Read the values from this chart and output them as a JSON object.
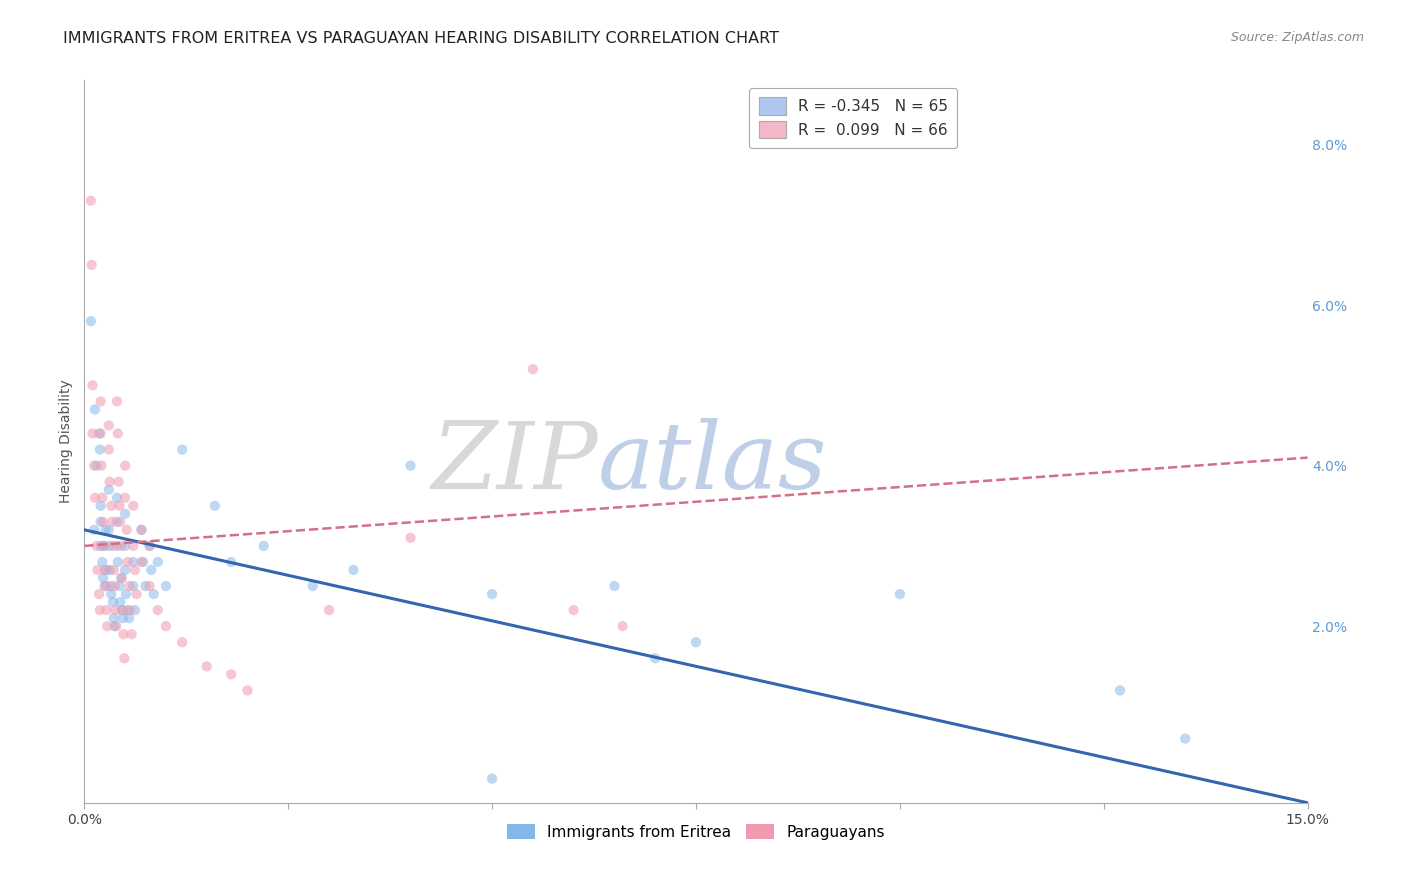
{
  "title": "IMMIGRANTS FROM ERITREA VS PARAGUAYAN HEARING DISABILITY CORRELATION CHART",
  "source": "Source: ZipAtlas.com",
  "ylabel": "Hearing Disability",
  "right_yticks": [
    "2.0%",
    "4.0%",
    "6.0%",
    "8.0%"
  ],
  "right_ytick_vals": [
    0.02,
    0.04,
    0.06,
    0.08
  ],
  "xmin": 0.0,
  "xmax": 0.15,
  "ymin": -0.002,
  "ymax": 0.088,
  "legend_entries": [
    {
      "label_r": "R = -0.345",
      "label_n": "N = 65",
      "color": "#aec6f0"
    },
    {
      "label_r": "R =  0.099",
      "label_n": "N = 66",
      "color": "#f4b8c8"
    }
  ],
  "legend_bottom": [
    "Immigrants from Eritrea",
    "Paraguayans"
  ],
  "blue_scatter": [
    [
      0.0008,
      0.058
    ],
    [
      0.0012,
      0.032
    ],
    [
      0.0013,
      0.047
    ],
    [
      0.0015,
      0.04
    ],
    [
      0.0018,
      0.044
    ],
    [
      0.0019,
      0.042
    ],
    [
      0.002,
      0.035
    ],
    [
      0.002,
      0.033
    ],
    [
      0.002,
      0.03
    ],
    [
      0.0022,
      0.028
    ],
    [
      0.0023,
      0.026
    ],
    [
      0.0024,
      0.03
    ],
    [
      0.0025,
      0.025
    ],
    [
      0.0026,
      0.032
    ],
    [
      0.0027,
      0.027
    ],
    [
      0.003,
      0.037
    ],
    [
      0.003,
      0.032
    ],
    [
      0.003,
      0.03
    ],
    [
      0.0031,
      0.027
    ],
    [
      0.0032,
      0.025
    ],
    [
      0.0033,
      0.024
    ],
    [
      0.0035,
      0.023
    ],
    [
      0.0036,
      0.021
    ],
    [
      0.0037,
      0.02
    ],
    [
      0.004,
      0.036
    ],
    [
      0.004,
      0.033
    ],
    [
      0.004,
      0.03
    ],
    [
      0.0041,
      0.028
    ],
    [
      0.0043,
      0.025
    ],
    [
      0.0044,
      0.023
    ],
    [
      0.0045,
      0.026
    ],
    [
      0.0046,
      0.022
    ],
    [
      0.0047,
      0.021
    ],
    [
      0.005,
      0.034
    ],
    [
      0.005,
      0.03
    ],
    [
      0.005,
      0.027
    ],
    [
      0.0051,
      0.024
    ],
    [
      0.0053,
      0.022
    ],
    [
      0.0055,
      0.021
    ],
    [
      0.006,
      0.028
    ],
    [
      0.006,
      0.025
    ],
    [
      0.0062,
      0.022
    ],
    [
      0.007,
      0.032
    ],
    [
      0.0072,
      0.028
    ],
    [
      0.0075,
      0.025
    ],
    [
      0.008,
      0.03
    ],
    [
      0.0082,
      0.027
    ],
    [
      0.0085,
      0.024
    ],
    [
      0.009,
      0.028
    ],
    [
      0.01,
      0.025
    ],
    [
      0.012,
      0.042
    ],
    [
      0.016,
      0.035
    ],
    [
      0.018,
      0.028
    ],
    [
      0.022,
      0.03
    ],
    [
      0.028,
      0.025
    ],
    [
      0.033,
      0.027
    ],
    [
      0.04,
      0.04
    ],
    [
      0.05,
      0.024
    ],
    [
      0.065,
      0.025
    ],
    [
      0.07,
      0.016
    ],
    [
      0.075,
      0.018
    ],
    [
      0.1,
      0.024
    ],
    [
      0.127,
      0.012
    ],
    [
      0.135,
      0.006
    ],
    [
      0.05,
      0.001
    ]
  ],
  "pink_scatter": [
    [
      0.0008,
      0.073
    ],
    [
      0.0009,
      0.065
    ],
    [
      0.001,
      0.05
    ],
    [
      0.001,
      0.044
    ],
    [
      0.0012,
      0.04
    ],
    [
      0.0013,
      0.036
    ],
    [
      0.0015,
      0.03
    ],
    [
      0.0016,
      0.027
    ],
    [
      0.0018,
      0.024
    ],
    [
      0.0019,
      0.022
    ],
    [
      0.002,
      0.048
    ],
    [
      0.002,
      0.044
    ],
    [
      0.0021,
      0.04
    ],
    [
      0.0022,
      0.036
    ],
    [
      0.0023,
      0.033
    ],
    [
      0.0024,
      0.03
    ],
    [
      0.0025,
      0.027
    ],
    [
      0.0026,
      0.025
    ],
    [
      0.0027,
      0.022
    ],
    [
      0.0028,
      0.02
    ],
    [
      0.003,
      0.045
    ],
    [
      0.003,
      0.042
    ],
    [
      0.0031,
      0.038
    ],
    [
      0.0033,
      0.035
    ],
    [
      0.0034,
      0.033
    ],
    [
      0.0035,
      0.03
    ],
    [
      0.0036,
      0.027
    ],
    [
      0.0037,
      0.025
    ],
    [
      0.0038,
      0.022
    ],
    [
      0.0039,
      0.02
    ],
    [
      0.004,
      0.048
    ],
    [
      0.0041,
      0.044
    ],
    [
      0.0042,
      0.038
    ],
    [
      0.0043,
      0.035
    ],
    [
      0.0044,
      0.033
    ],
    [
      0.0045,
      0.03
    ],
    [
      0.0046,
      0.026
    ],
    [
      0.0047,
      0.022
    ],
    [
      0.0048,
      0.019
    ],
    [
      0.0049,
      0.016
    ],
    [
      0.005,
      0.04
    ],
    [
      0.005,
      0.036
    ],
    [
      0.0052,
      0.032
    ],
    [
      0.0053,
      0.028
    ],
    [
      0.0055,
      0.025
    ],
    [
      0.0056,
      0.022
    ],
    [
      0.0058,
      0.019
    ],
    [
      0.006,
      0.035
    ],
    [
      0.006,
      0.03
    ],
    [
      0.0062,
      0.027
    ],
    [
      0.0064,
      0.024
    ],
    [
      0.007,
      0.032
    ],
    [
      0.007,
      0.028
    ],
    [
      0.008,
      0.03
    ],
    [
      0.008,
      0.025
    ],
    [
      0.009,
      0.022
    ],
    [
      0.01,
      0.02
    ],
    [
      0.012,
      0.018
    ],
    [
      0.015,
      0.015
    ],
    [
      0.018,
      0.014
    ],
    [
      0.02,
      0.012
    ],
    [
      0.03,
      0.022
    ],
    [
      0.04,
      0.031
    ],
    [
      0.055,
      0.052
    ],
    [
      0.06,
      0.022
    ],
    [
      0.066,
      0.02
    ]
  ],
  "blue_line": {
    "x": [
      0.0,
      0.15
    ],
    "y": [
      0.032,
      -0.002
    ]
  },
  "pink_line": {
    "x": [
      0.0,
      0.15
    ],
    "y": [
      0.03,
      0.041
    ]
  },
  "watermark_zip": "ZIP",
  "watermark_atlas": "atlas",
  "scatter_size": 55,
  "scatter_alpha": 0.55,
  "blue_color": "#85b8ea",
  "pink_color": "#f09ab0",
  "blue_line_color": "#3465b0",
  "pink_line_color": "#d47085",
  "grid_color": "#d0d0d0",
  "background_color": "#ffffff",
  "title_fontsize": 11.5,
  "axis_label_fontsize": 10
}
